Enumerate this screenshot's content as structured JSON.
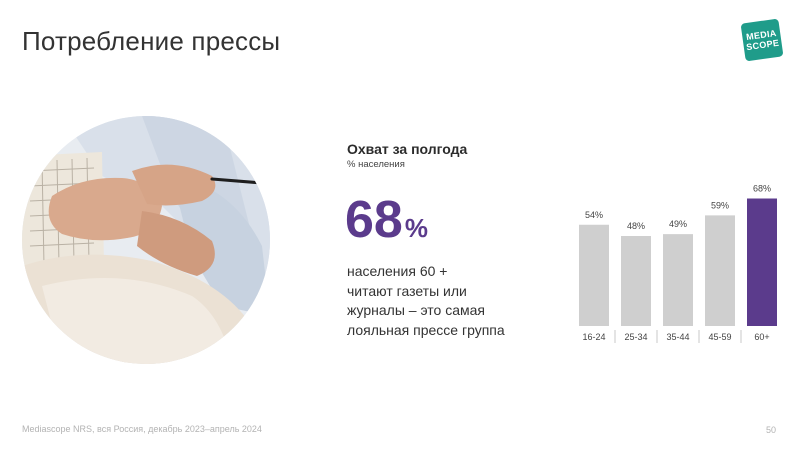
{
  "page": {
    "title": "Потребление прессы",
    "logo_line1": "MEDIA",
    "logo_line2": "SCOPE",
    "footer_note": "Mediascope NRS, вся Россия, декабрь 2023–апрель 2024",
    "page_number": "50"
  },
  "kpi": {
    "heading": "Охват за полгода",
    "subheading": "% населения",
    "value": "68",
    "unit": "%",
    "description_lines": [
      "населения 60 +",
      "читают газеты или",
      "журналы – это самая",
      "лояльная прессе группа"
    ]
  },
  "colors": {
    "bar_default": "#cfcfcf",
    "bar_highlight": "#5b3b8c",
    "kpi_accent": "#5b3b8c",
    "logo": "#1f9c8a"
  },
  "chart_data": {
    "type": "bar",
    "categories": [
      "16-24",
      "25-34",
      "35-44",
      "45-59",
      "60+"
    ],
    "values": [
      54,
      48,
      49,
      59,
      68
    ],
    "value_labels": [
      "54%",
      "48%",
      "49%",
      "59%",
      "68%"
    ],
    "highlight_index": 4,
    "ylim": [
      0,
      80
    ],
    "grid": false,
    "legend": "none"
  }
}
